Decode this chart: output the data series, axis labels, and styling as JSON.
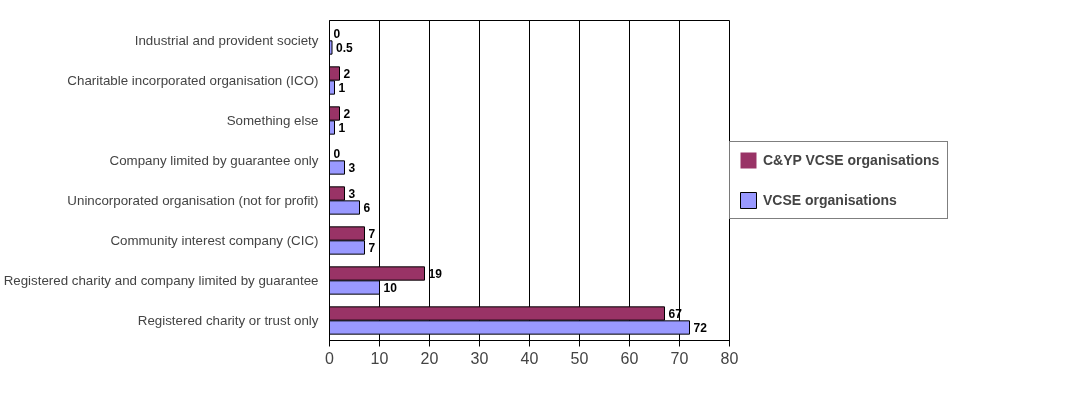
{
  "chart_data": {
    "type": "bar",
    "orientation": "horizontal",
    "categories": [
      "Industrial and provident society",
      "Charitable incorporated organisation (ICO)",
      "Something else",
      "Company limited by guarantee only",
      "Unincorporated organisation (not for profit)",
      "Community interest company (CIC)",
      "Registered charity and company limited by guarantee",
      "Registered charity or trust only"
    ],
    "series": [
      {
        "name": "C&YP VCSE organisations",
        "color": "#993366",
        "values": [
          0,
          2,
          2,
          0,
          3,
          7,
          19,
          67
        ]
      },
      {
        "name": "VCSE organisations",
        "color": "#9999ff",
        "values": [
          0.5,
          1,
          1,
          3,
          6,
          7,
          10,
          72
        ]
      }
    ],
    "xlim": [
      0,
      80
    ],
    "xticks": [
      0,
      10,
      20,
      30,
      40,
      50,
      60,
      70,
      80
    ],
    "grid": "x",
    "legend": "right",
    "data_labels": true
  }
}
